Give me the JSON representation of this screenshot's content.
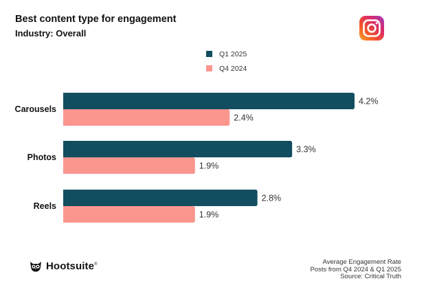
{
  "title": "Best content type for engagement",
  "subtitle": "Industry: Overall",
  "brand": {
    "name": "Hootsuite",
    "mark": "®"
  },
  "notes": [
    "Average Engagement Rate",
    "Posts from Q4 2024 & Q1 2025",
    "Source: Critical Truth"
  ],
  "colors": {
    "q1_2025": "#124e5f",
    "q4_2024": "#fb968f"
  },
  "icons": {
    "platform": "instagram-icon",
    "brand": "owl-icon"
  },
  "chart_data": {
    "type": "bar",
    "orientation": "horizontal",
    "categories": [
      "Carousels",
      "Photos",
      "Reels"
    ],
    "series": [
      {
        "name": "Q1 2025",
        "values": [
          4.2,
          3.3,
          2.8
        ],
        "labels": [
          "4.2%",
          "3.3%",
          "2.8%"
        ]
      },
      {
        "name": "Q4 2024",
        "values": [
          2.4,
          1.9,
          1.9
        ],
        "labels": [
          "2.4%",
          "1.9%",
          "1.9%"
        ]
      }
    ],
    "xlim": [
      0,
      4.2
    ],
    "value_unit": "%",
    "legend_position": "top-center",
    "grid": false
  }
}
